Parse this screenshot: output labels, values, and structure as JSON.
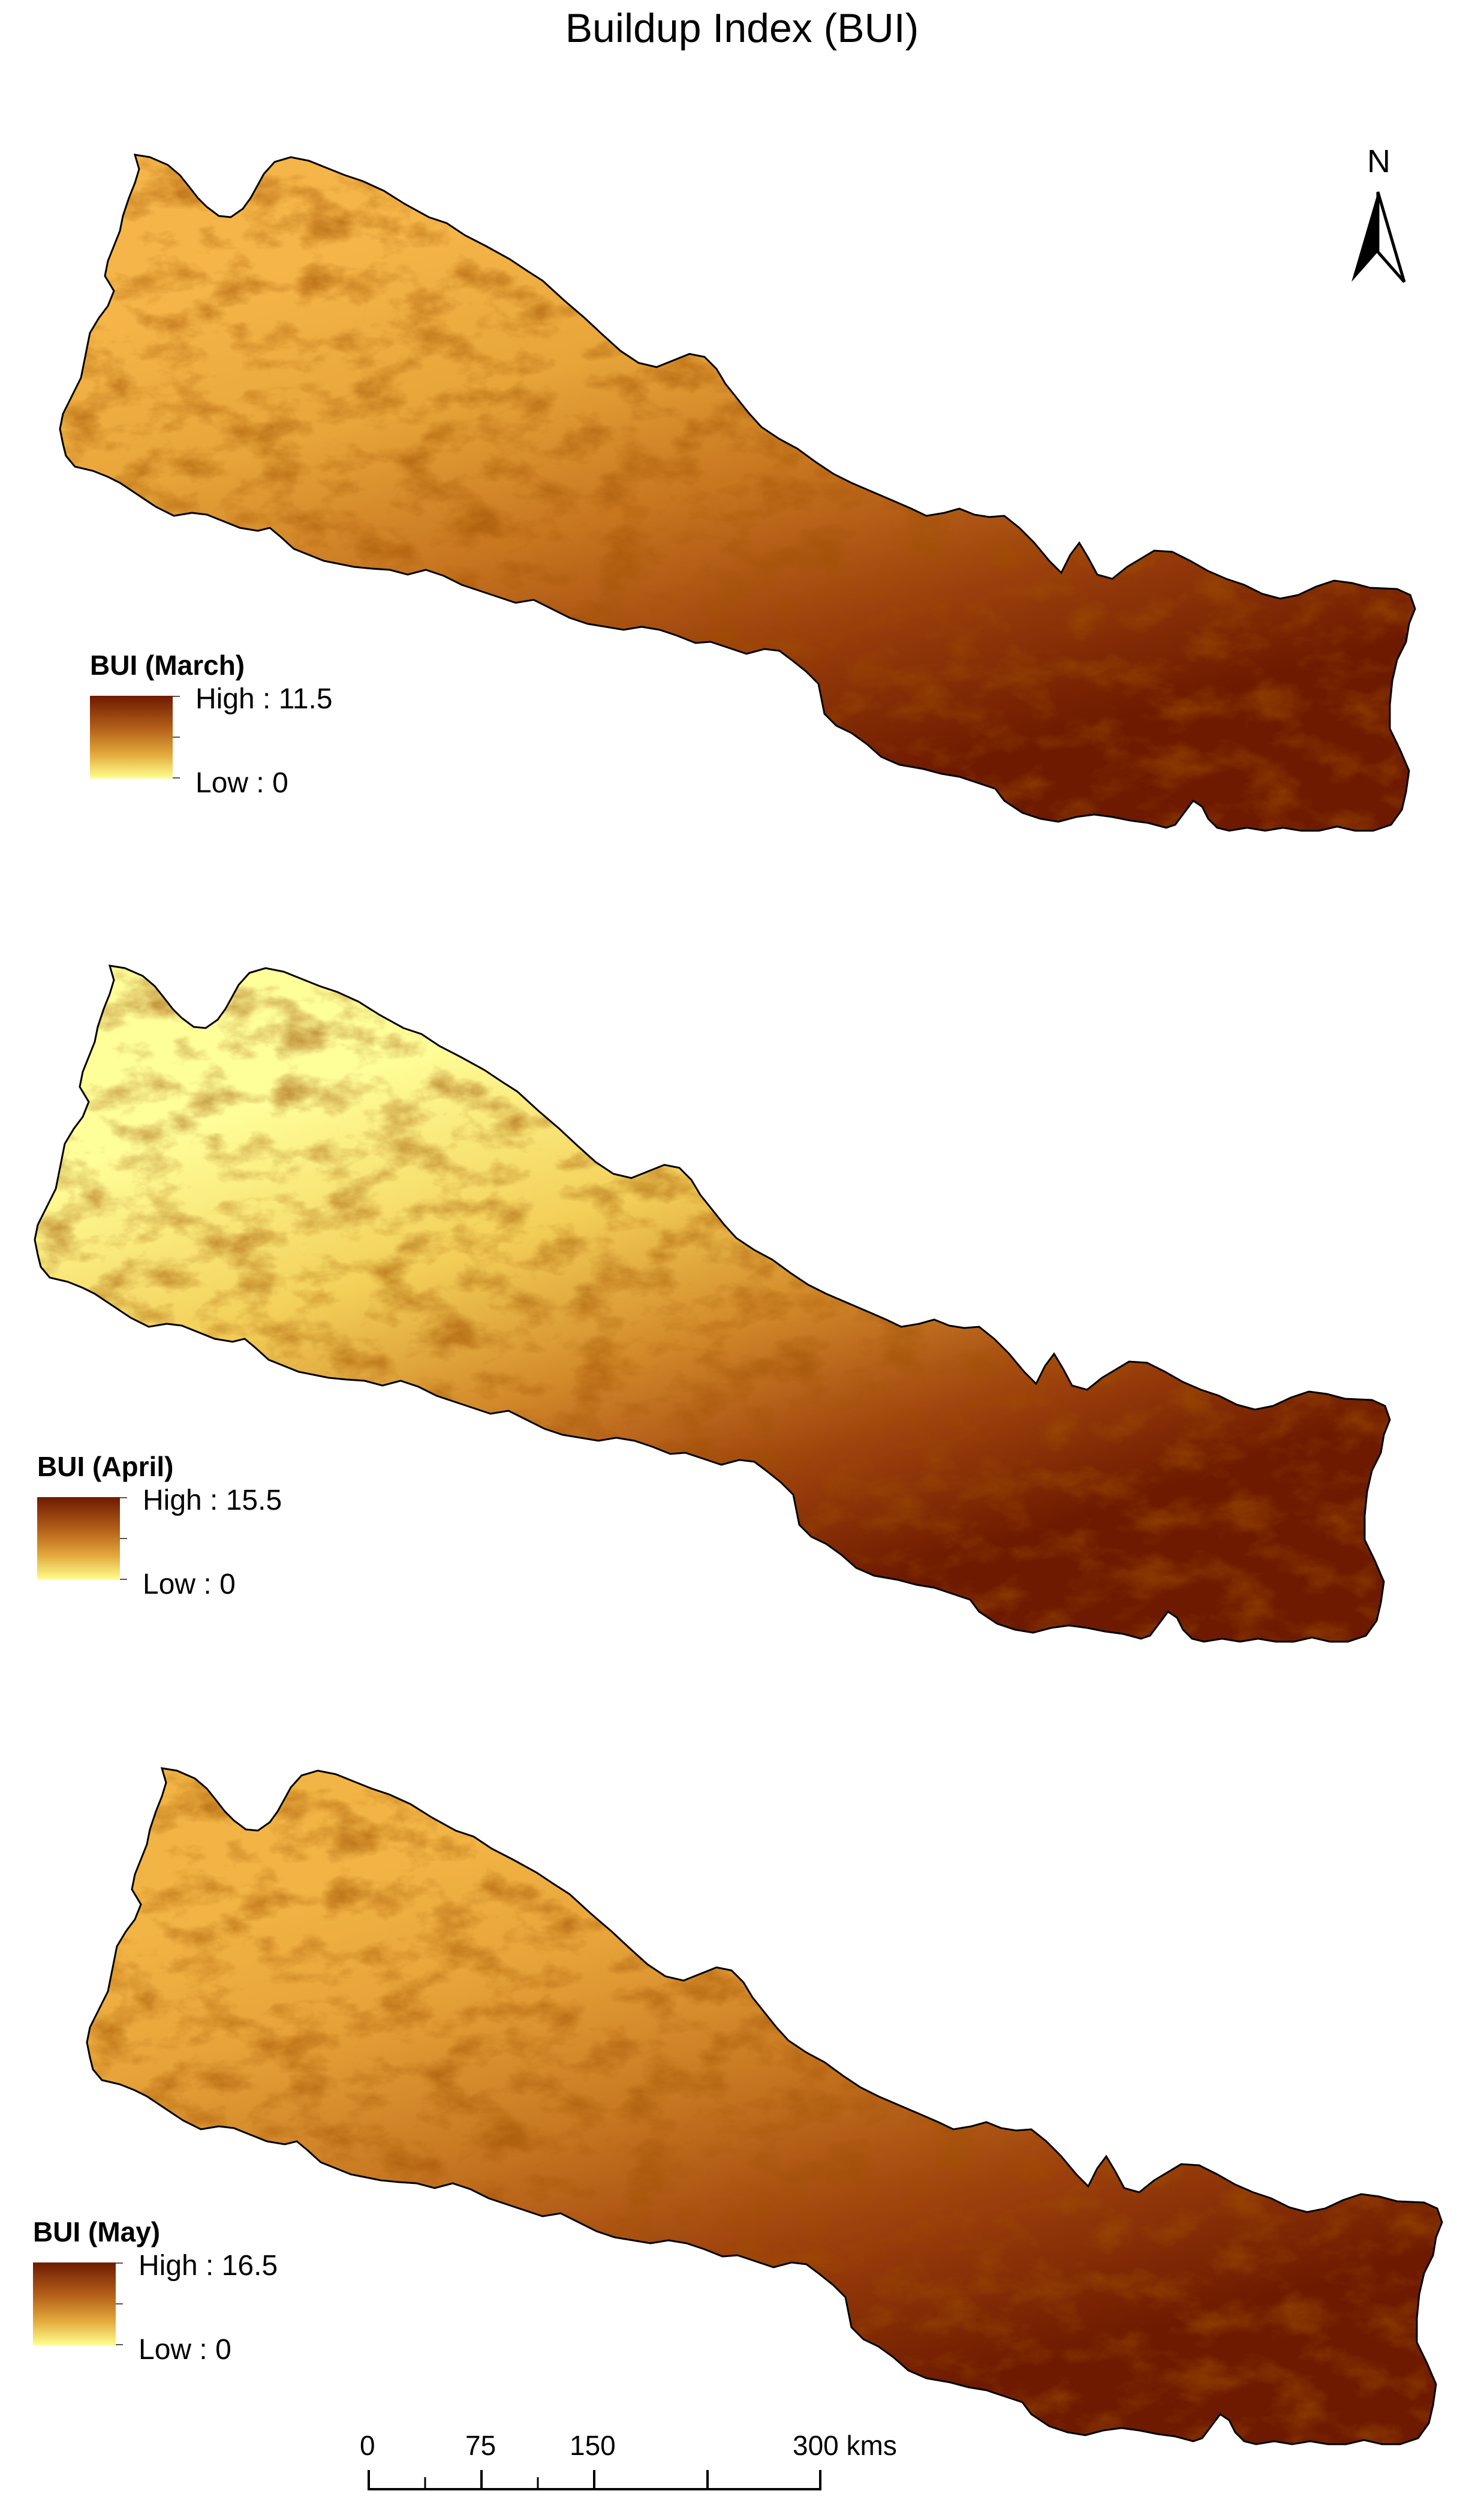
{
  "title": "Buildup Index (BUI)",
  "north_label": "N",
  "north_arrow_icon": "north-arrow-icon",
  "colors": {
    "high": "#6e1a00",
    "mid": "#c7751f",
    "low": "#ffff90",
    "outline": "#000000"
  },
  "panels": [
    {
      "legend_title": "BUI (March)",
      "high_label": "High : 11.5",
      "low_label": "Low : 0",
      "high_value": 11.5,
      "low_value": 0
    },
    {
      "legend_title": "BUI (April)",
      "high_label": "High : 15.5",
      "low_label": "Low : 0",
      "high_value": 15.5,
      "low_value": 0
    },
    {
      "legend_title": "BUI (May)",
      "high_label": "High : 16.5",
      "low_label": "Low : 0",
      "high_value": 16.5,
      "low_value": 0
    }
  ],
  "scale_bar": {
    "ticks": [
      "0",
      "75",
      "150",
      "300 kms"
    ],
    "values": [
      0,
      75,
      150,
      300
    ],
    "unit": "kms"
  }
}
